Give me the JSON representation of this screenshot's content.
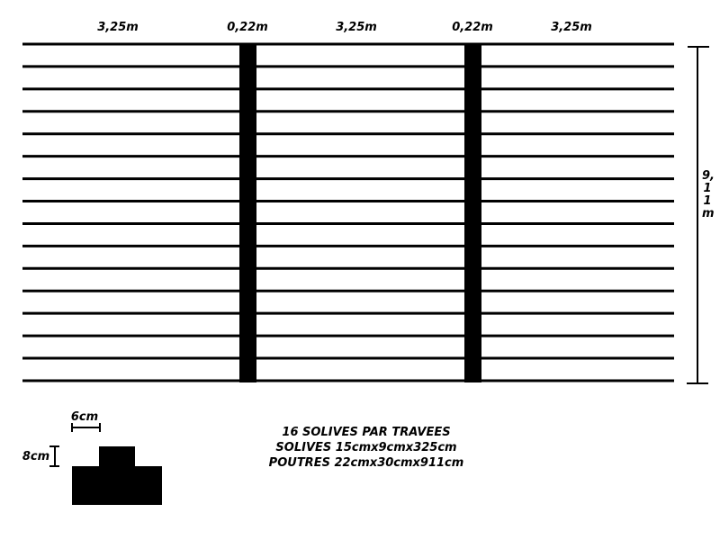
{
  "dimensions": {
    "top": [
      "3,25m",
      "0,22m",
      "3,25m",
      "0,22m",
      "3,25m"
    ],
    "height": "9,11m"
  },
  "joist_count": 16,
  "section": {
    "width": "6cm",
    "height": "8cm"
  },
  "notes": [
    "16 SOLIVES PAR TRAVEES",
    "SOLIVES 15cmx9cmx325cm",
    "POUTRES 22cmx30cmx911cm"
  ],
  "colors": {
    "ink": "#000000",
    "background": "#ffffff"
  }
}
